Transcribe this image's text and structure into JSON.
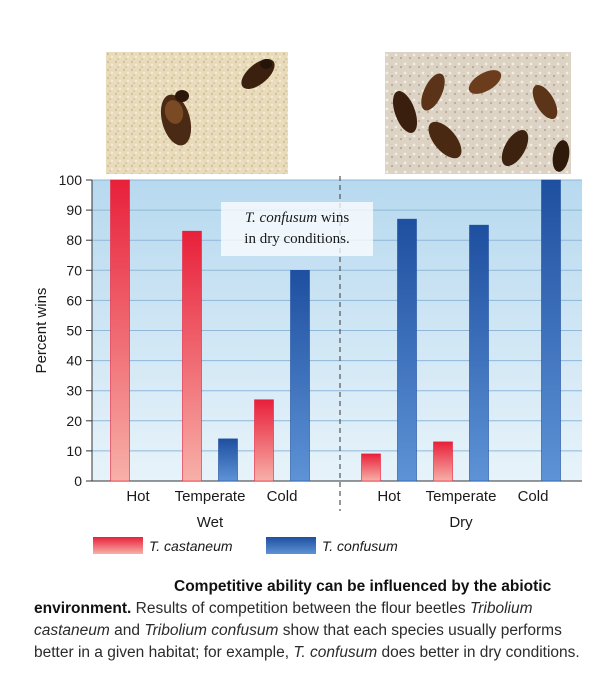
{
  "chart_data": {
    "type": "bar",
    "groups": [
      {
        "name": "Wet",
        "categories": [
          "Hot",
          "Temperate",
          "Cold"
        ]
      },
      {
        "name": "Dry",
        "categories": [
          "Hot",
          "Temperate",
          "Cold"
        ]
      }
    ],
    "categories": [
      "Hot",
      "Temperate",
      "Cold",
      "Hot",
      "Temperate",
      "Cold"
    ],
    "series": [
      {
        "name": "T. castaneum",
        "values": [
          100,
          83,
          27,
          9,
          13,
          0
        ]
      },
      {
        "name": "T. confusum",
        "values": [
          0,
          14,
          70,
          87,
          85,
          100
        ]
      }
    ],
    "ylabel": "Percent wins",
    "ylim": [
      0,
      100
    ],
    "yticks": [
      0,
      10,
      20,
      30,
      40,
      50,
      60,
      70,
      80,
      90,
      100
    ],
    "grid": true,
    "legend_position": "bottom",
    "annotation": {
      "line1": {
        "italic": "T. confusum",
        "rest": " wins"
      },
      "line2": "in dry conditions."
    },
    "colors": {
      "castaneum_top": "#e8203a",
      "castaneum_bottom": "#f7b0a8",
      "confusum_top": "#1e4fa0",
      "confusum_bottom": "#5e93d6",
      "plot_bg_top": "#b7d9ef",
      "plot_bg_bottom": "#e7f3fa",
      "grid": "#8fb7d8"
    }
  },
  "caption": {
    "lead": "Competitive ability can be influenced by the abiotic environment.",
    "part1": "  Results of competition between the flour beetles ",
    "species1": "Tribolium castaneum",
    "part2": " and ",
    "species2": "Tribolium confusum",
    "part3": " show that each species usually performs better in a given habitat; for example, ",
    "species3": "T. confusum",
    "part4": " does better in dry conditions."
  }
}
